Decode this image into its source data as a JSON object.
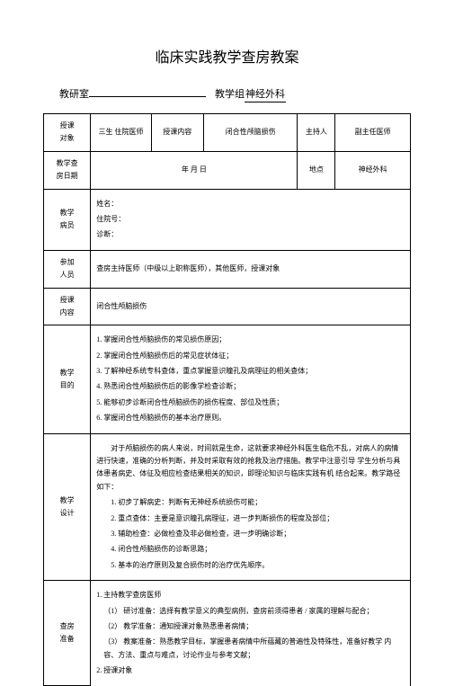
{
  "title": "临床实践教学查房教案",
  "header": {
    "lab_label": "教研室",
    "group_label": "教学组",
    "group_value": "神经外科"
  },
  "row1": {
    "h": "授课\n对象",
    "c2": "三生 住院医师",
    "c3": "授课内容",
    "c4": "闭合性颅脑损伤",
    "c5": "主持人",
    "c6": "副主任医师"
  },
  "row2": {
    "h": "教学查\n房日期",
    "c2": "年  月     日",
    "c5": "地点",
    "c6": "神经外科"
  },
  "row3": {
    "h": "教学\n病员",
    "lines": [
      "姓名：",
      "住院号：",
      "诊断："
    ]
  },
  "row4": {
    "h": "参加\n人员",
    "text": "查房主持医师（中级以上职称医师），其他医师，授课对象"
  },
  "row5": {
    "h": "授课\n内容",
    "text": "闭合性颅脑损伤"
  },
  "row6": {
    "h": "教学\n目的",
    "lines": [
      "1. 掌握闭合性颅脑损伤的常见损伤原因；",
      "2. 掌握闭合性颅脑损伤后的常见症状体征；",
      "3. 了解神经系统专科查体，重点掌握意识瞳孔及病理征的相关查体；",
      "4. 熟悉闭合性颅脑损伤后的影像学检查诊断；",
      "5. 能够初步诊断闭合性颅脑损伤的损伤程度、部位及性质；",
      "6. 掌握闭合性颅脑损伤的基本治疗原则。"
    ]
  },
  "row7": {
    "h": "教学\n设计",
    "intro": "对于颅脑损伤的病人来说，时间就是生命，这就要求神经外科医生临危不乱，对病人的病情进行快速，准确的分析判断，并及时采取有效的抢救及治疗措施。教学中注意引导 学生分析与具体患者病史、体征及相应检查结果相关的知识，即理论知识与临床实践有机 结合起来。教学路径如下：",
    "items": [
      "1. 初步了解病史：判断有无神经系统损伤可能；",
      "2. 重点查体：主要是意识瞳孔病理征，进一步判断损伤的程度及部位；",
      "3. 辅助检查：必做检查及非必做检查，进一步明确诊断；",
      "4. 闭合性颅脑损伤的诊断思路；",
      "5. 基本的治疗原则及复合损伤时的治疗优先顺序。"
    ]
  },
  "row8": {
    "h": "查房\n准备",
    "title": "1. 主持教学查房医师",
    "items": [
      "（1）  研讨准备：选择有教学意义的典型病例，查房前须得患者  / 家属的理解与配合；",
      "（2）    教学准备：通知授课对象熟悉患者病情；",
      "（3）  教案准备：熟悉教学目标，掌握患者病情中所蕴藏的普遍性及特殊性，准备好教学 内容、方法、重点与难点，讨论作业与参考文献；"
    ],
    "foot": "2. 授课对象"
  }
}
